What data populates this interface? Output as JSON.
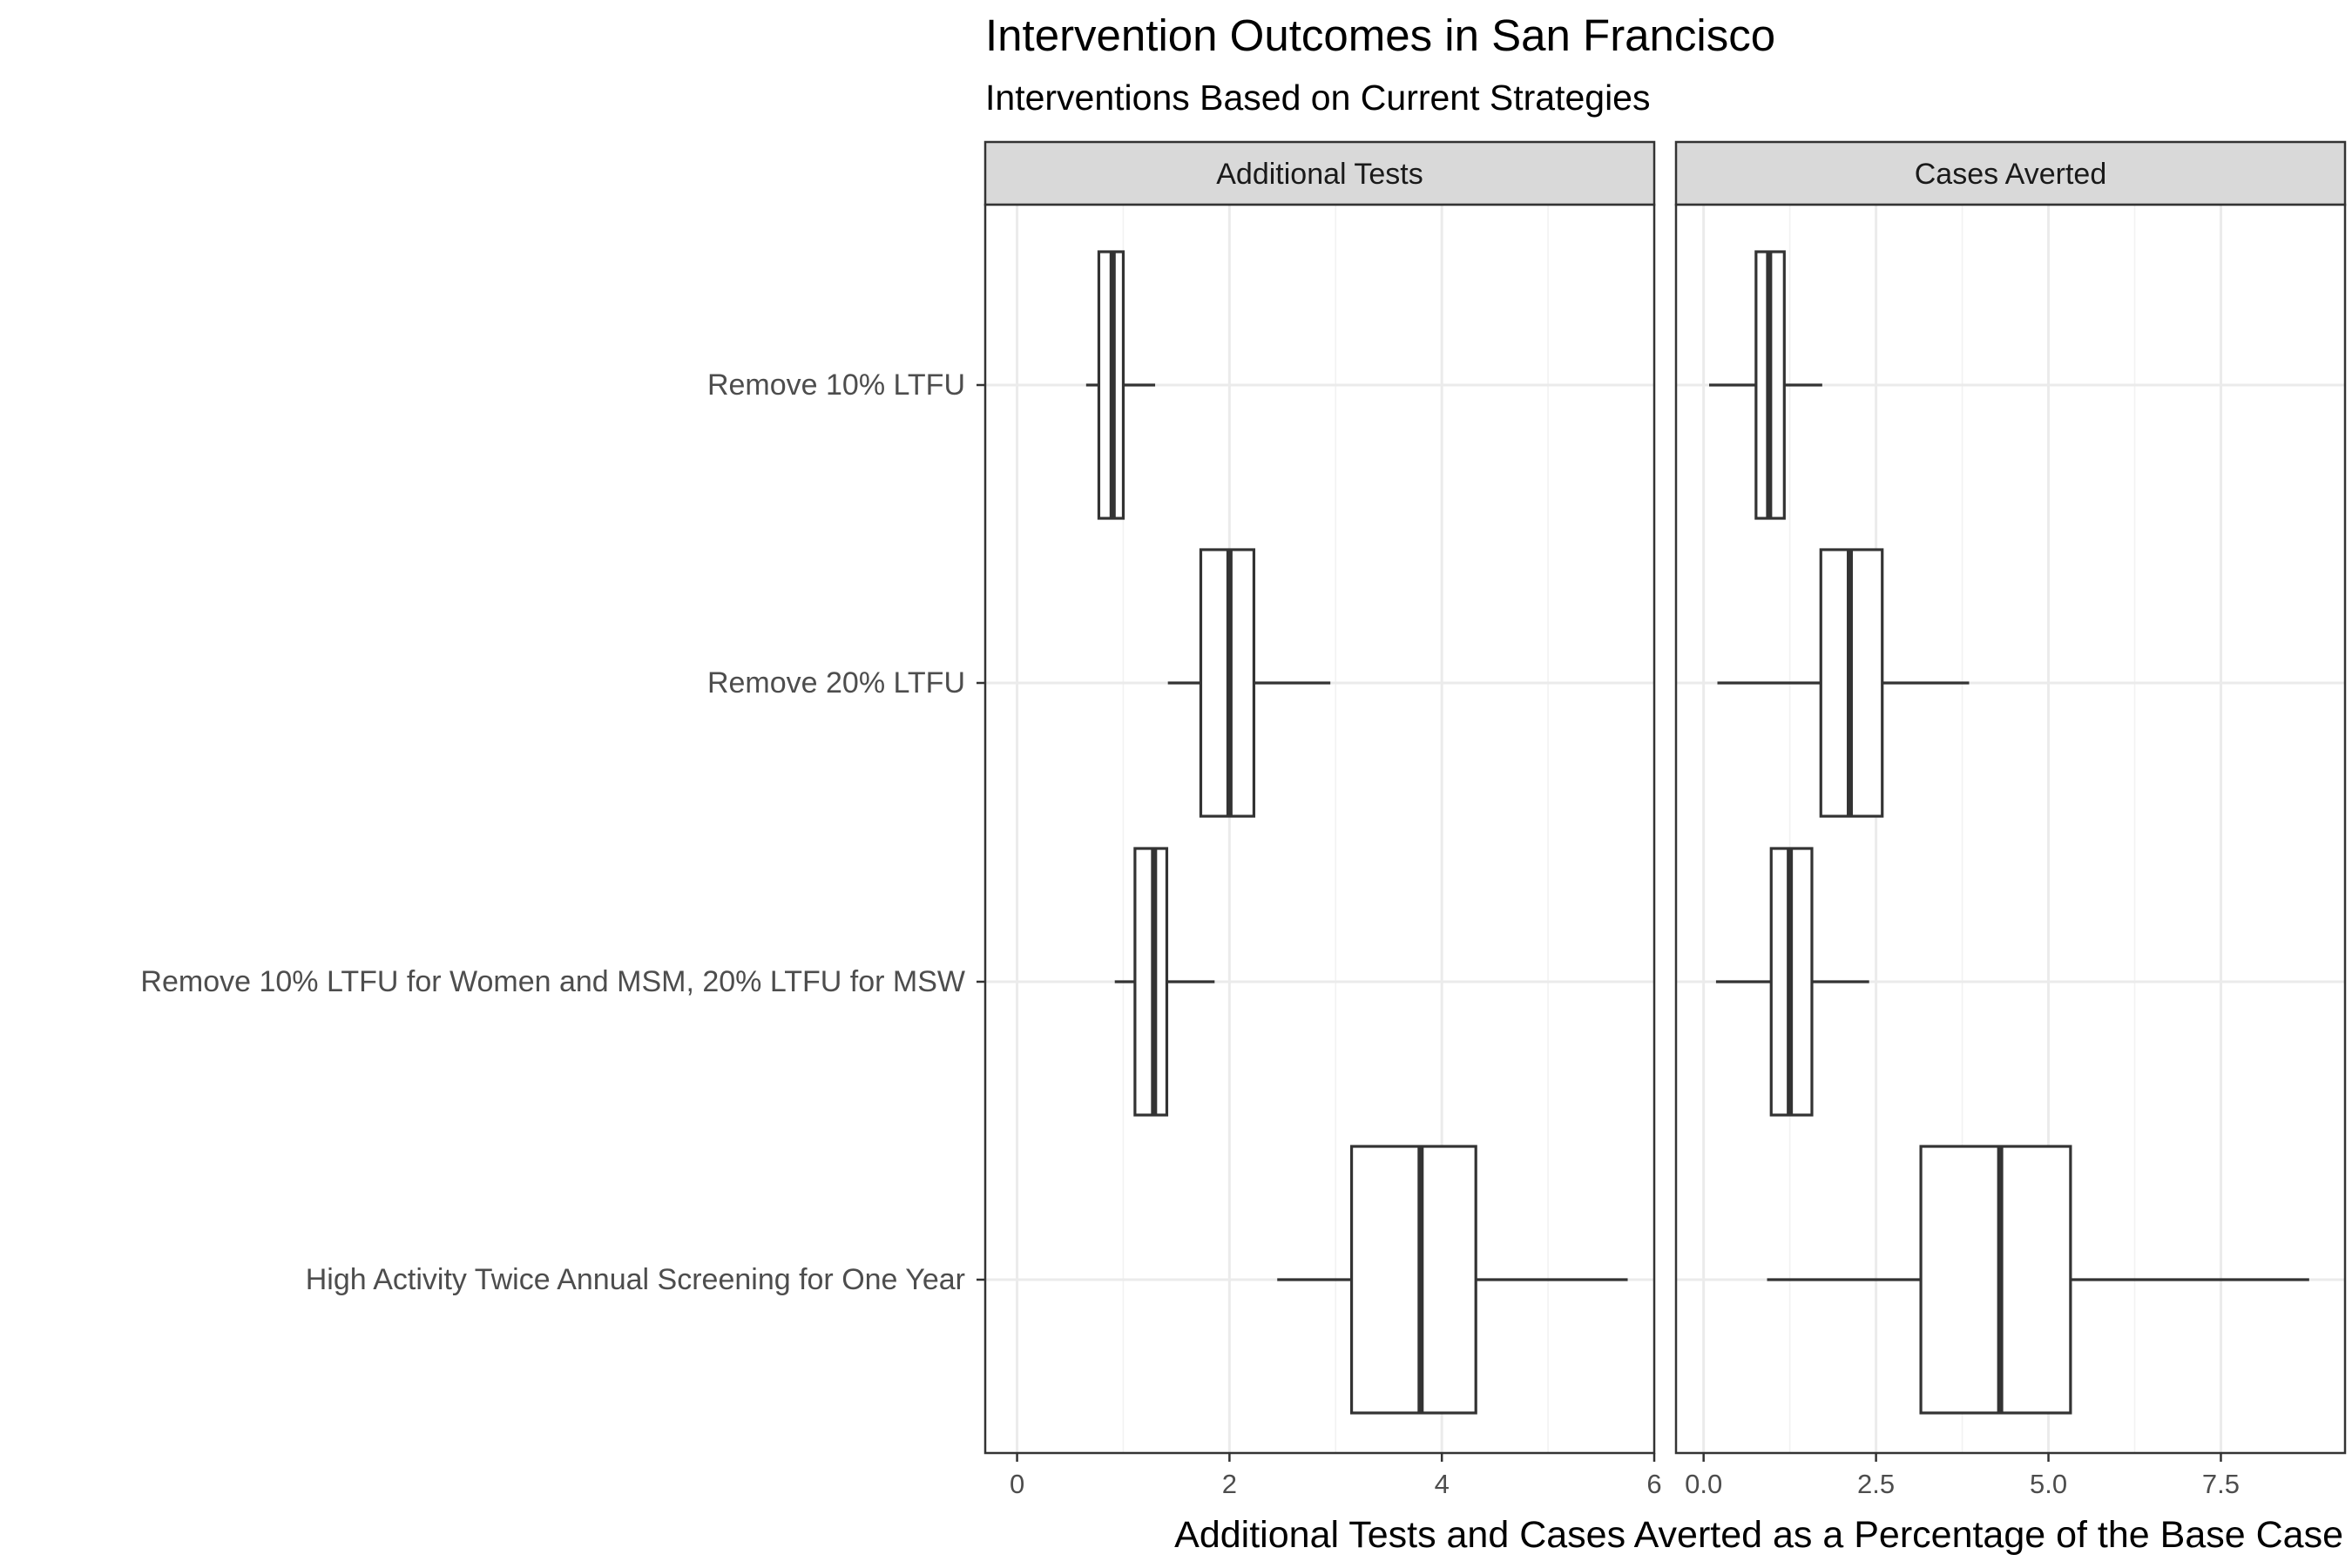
{
  "chart_data": {
    "type": "boxplot",
    "title": "Intervention Outcomes in San Francisco",
    "subtitle": "Interventions Based on Current Strategies",
    "xlabel": "Additional Tests and Cases Averted as a Percentage of the Base Case",
    "ylabel": "",
    "grid": true,
    "categories": [
      "Remove 10% LTFU",
      "Remove 20% LTFU",
      "Remove 10% LTFU for Women and MSM, 20% LTFU for MSW",
      "High Activity Twice Annual Screening for One Year"
    ],
    "panels": [
      {
        "name": "Additional Tests",
        "xlim": [
          -0.3,
          6.0
        ],
        "ticks": [
          0,
          2,
          4,
          6
        ],
        "tick_labels": [
          "0",
          "2",
          "4",
          "6"
        ],
        "boxes": [
          {
            "category": "Remove 10% LTFU",
            "whisker_low": 0.65,
            "q1": 0.77,
            "median": 0.9,
            "q3": 1.0,
            "whisker_high": 1.3
          },
          {
            "category": "Remove 20% LTFU",
            "whisker_low": 1.42,
            "q1": 1.73,
            "median": 2.0,
            "q3": 2.23,
            "whisker_high": 2.95
          },
          {
            "category": "Remove 10% LTFU for Women and MSM, 20% LTFU for MSW",
            "whisker_low": 0.92,
            "q1": 1.11,
            "median": 1.29,
            "q3": 1.41,
            "whisker_high": 1.86
          },
          {
            "category": "High Activity Twice Annual Screening for One Year",
            "whisker_low": 2.45,
            "q1": 3.15,
            "median": 3.8,
            "q3": 4.32,
            "whisker_high": 5.75
          }
        ]
      },
      {
        "name": "Cases Averted",
        "xlim": [
          -0.4,
          9.3
        ],
        "ticks": [
          0,
          2.5,
          5,
          7.5
        ],
        "tick_labels": [
          "0.0",
          "2.5",
          "5.0",
          "7.5"
        ],
        "boxes": [
          {
            "category": "Remove 10% LTFU",
            "whisker_low": 0.08,
            "q1": 0.76,
            "median": 0.95,
            "q3": 1.17,
            "whisker_high": 1.72
          },
          {
            "category": "Remove 20% LTFU",
            "whisker_low": 0.2,
            "q1": 1.7,
            "median": 2.12,
            "q3": 2.59,
            "whisker_high": 3.85
          },
          {
            "category": "Remove 10% LTFU for Women and MSM, 20% LTFU for MSW",
            "whisker_low": 0.18,
            "q1": 0.98,
            "median": 1.25,
            "q3": 1.57,
            "whisker_high": 2.4
          },
          {
            "category": "High Activity Twice Annual Screening for One Year",
            "whisker_low": 0.92,
            "q1": 3.15,
            "median": 4.3,
            "q3": 5.32,
            "whisker_high": 8.78
          }
        ]
      }
    ]
  },
  "colors": {
    "strip_fill": "#d9d9d9",
    "panel_border": "#333333",
    "grid": "#ebebeb",
    "box_stroke": "#333333",
    "box_fill": "#ffffff",
    "tick_label": "#4d4d4d"
  }
}
